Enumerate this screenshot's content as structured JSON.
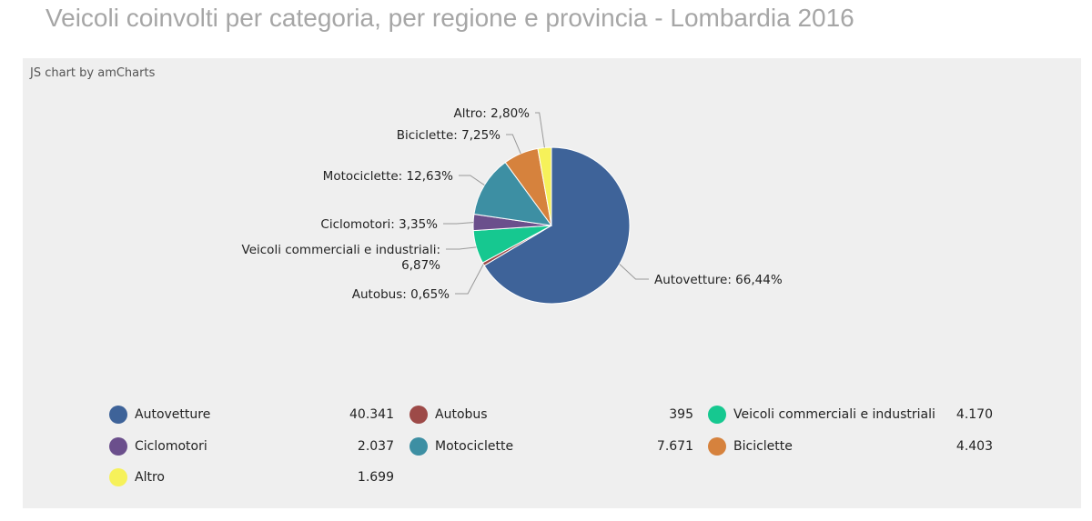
{
  "page": {
    "title": "Veicoli coinvolti per categoria, per regione e provincia - Lombardia 2016",
    "credit": "JS chart by amCharts"
  },
  "chart_data": {
    "type": "pie",
    "title": "Veicoli coinvolti per categoria, per regione e provincia - Lombardia 2016",
    "slices": [
      {
        "category": "Autovetture",
        "value": 40341,
        "value_label": "40.341",
        "percent_label": "66,44%",
        "color": "#3e6399"
      },
      {
        "category": "Autobus",
        "value": 395,
        "value_label": "395",
        "percent_label": "0,65%",
        "color": "#9d4a48"
      },
      {
        "category": "Veicoli commerciali e industriali",
        "value": 4170,
        "value_label": "4.170",
        "percent_label": "6,87%",
        "color": "#16c890"
      },
      {
        "category": "Ciclomotori",
        "value": 2037,
        "value_label": "2.037",
        "percent_label": "3,35%",
        "color": "#6b4f8c"
      },
      {
        "category": "Motociclette",
        "value": 7671,
        "value_label": "7.671",
        "percent_label": "12,63%",
        "color": "#3d8fa3"
      },
      {
        "category": "Biciclette",
        "value": 4403,
        "value_label": "4.403",
        "percent_label": "7,25%",
        "color": "#d6823d"
      },
      {
        "category": "Altro",
        "value": 1699,
        "value_label": "1.699",
        "percent_label": "2,80%",
        "color": "#f6f15a"
      }
    ],
    "legend_position": "bottom"
  }
}
